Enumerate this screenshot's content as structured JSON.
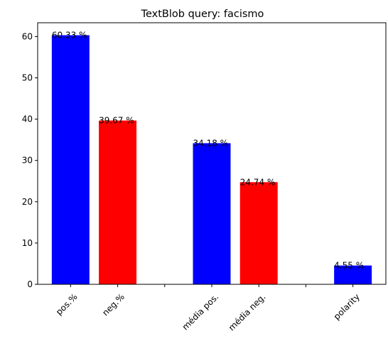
{
  "chart_data": {
    "type": "bar",
    "title": "TextBlob query: facismo",
    "xlabel": "",
    "ylabel": "",
    "ylim": [
      0,
      63.35
    ],
    "yticks": [
      0,
      10,
      20,
      30,
      40,
      50,
      60
    ],
    "x_tick_positions": [
      0,
      1,
      2,
      3,
      4,
      5,
      6
    ],
    "x_tick_labels": [
      "pos.%",
      "neg.%",
      "",
      "média pos.",
      "média neg.",
      "",
      "polarity"
    ],
    "bars": [
      {
        "x": 0,
        "value": 60.33,
        "label": "60.33 %",
        "color": "#0000ff"
      },
      {
        "x": 1,
        "value": 39.67,
        "label": "39.67 %",
        "color": "#ff0000"
      },
      {
        "x": 3,
        "value": 34.18,
        "label": "34.18 %",
        "color": "#0000ff"
      },
      {
        "x": 4,
        "value": 24.74,
        "label": "24.74 %",
        "color": "#ff0000"
      },
      {
        "x": 6,
        "value": 4.55,
        "label": "4.55 %",
        "color": "#0000ff"
      }
    ],
    "grid": false,
    "legend": "none"
  }
}
